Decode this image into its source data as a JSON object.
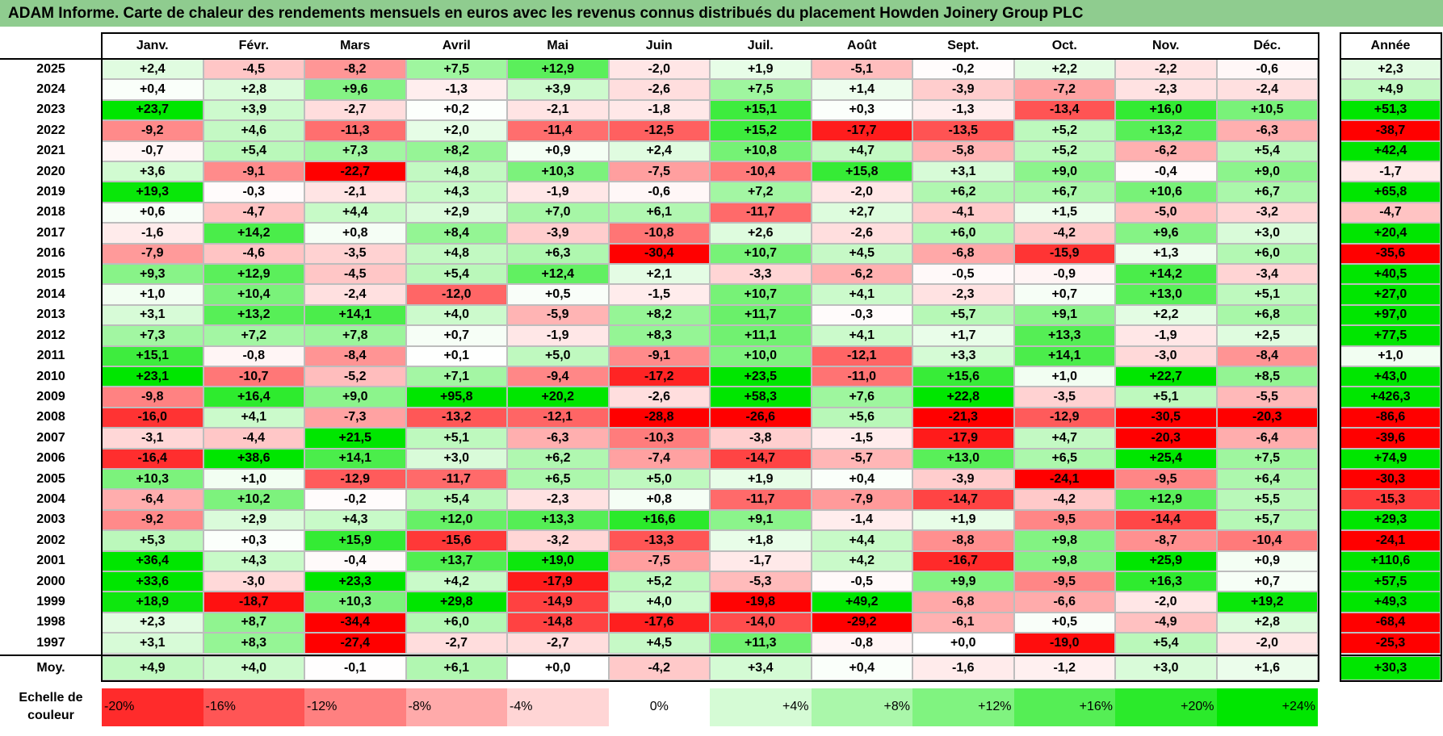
{
  "title": "ADAM Informe. Carte de chaleur des rendements mensuels en euros avec les revenus connus distribués du placement Howden Joinery Group PLC",
  "chart_data": {
    "type": "heatmap",
    "columns": [
      "Janv.",
      "Févr.",
      "Mars",
      "Avril",
      "Mai",
      "Juin",
      "Juil.",
      "Août",
      "Sept.",
      "Oct.",
      "Nov.",
      "Déc."
    ],
    "year_column": "Année",
    "rows": [
      {
        "year": "2025",
        "values": [
          "+2,4",
          "-4,5",
          "-8,2",
          "+7,5",
          "+12,9",
          "-2,0",
          "+1,9",
          "-5,1",
          "-0,2",
          "+2,2",
          "-2,2",
          "-0,6"
        ],
        "annual": "+2,3"
      },
      {
        "year": "2024",
        "values": [
          "+0,4",
          "+2,8",
          "+9,6",
          "-1,3",
          "+3,9",
          "-2,6",
          "+7,5",
          "+1,4",
          "-3,9",
          "-7,2",
          "-2,3",
          "-2,4"
        ],
        "annual": "+4,9"
      },
      {
        "year": "2023",
        "values": [
          "+23,7",
          "+3,9",
          "-2,7",
          "+0,2",
          "-2,1",
          "-1,8",
          "+15,1",
          "+0,3",
          "-1,3",
          "-13,4",
          "+16,0",
          "+10,5"
        ],
        "annual": "+51,3"
      },
      {
        "year": "2022",
        "values": [
          "-9,2",
          "+4,6",
          "-11,3",
          "+2,0",
          "-11,4",
          "-12,5",
          "+15,2",
          "-17,7",
          "-13,5",
          "+5,2",
          "+13,2",
          "-6,3"
        ],
        "annual": "-38,7"
      },
      {
        "year": "2021",
        "values": [
          "-0,7",
          "+5,4",
          "+7,3",
          "+8,2",
          "+0,9",
          "+2,4",
          "+10,8",
          "+4,7",
          "-5,8",
          "+5,2",
          "-6,2",
          "+5,4"
        ],
        "annual": "+42,4"
      },
      {
        "year": "2020",
        "values": [
          "+3,6",
          "-9,1",
          "-22,7",
          "+4,8",
          "+10,3",
          "-7,5",
          "-10,4",
          "+15,8",
          "+3,1",
          "+9,0",
          "-0,4",
          "+9,0"
        ],
        "annual": "-1,7"
      },
      {
        "year": "2019",
        "values": [
          "+19,3",
          "-0,3",
          "-2,1",
          "+4,3",
          "-1,9",
          "-0,6",
          "+7,2",
          "-2,0",
          "+6,2",
          "+6,7",
          "+10,6",
          "+6,7"
        ],
        "annual": "+65,8"
      },
      {
        "year": "2018",
        "values": [
          "+0,6",
          "-4,7",
          "+4,4",
          "+2,9",
          "+7,0",
          "+6,1",
          "-11,7",
          "+2,7",
          "-4,1",
          "+1,5",
          "-5,0",
          "-3,2"
        ],
        "annual": "-4,7"
      },
      {
        "year": "2017",
        "values": [
          "-1,6",
          "+14,2",
          "+0,8",
          "+8,4",
          "-3,9",
          "-10,8",
          "+2,6",
          "-2,6",
          "+6,0",
          "-4,2",
          "+9,6",
          "+3,0"
        ],
        "annual": "+20,4"
      },
      {
        "year": "2016",
        "values": [
          "-7,9",
          "-4,6",
          "-3,5",
          "+4,8",
          "+6,3",
          "-30,4",
          "+10,7",
          "+4,5",
          "-6,8",
          "-15,9",
          "+1,3",
          "+6,0"
        ],
        "annual": "-35,6"
      },
      {
        "year": "2015",
        "values": [
          "+9,3",
          "+12,9",
          "-4,5",
          "+5,4",
          "+12,4",
          "+2,1",
          "-3,3",
          "-6,2",
          "-0,5",
          "-0,9",
          "+14,2",
          "-3,4"
        ],
        "annual": "+40,5"
      },
      {
        "year": "2014",
        "values": [
          "+1,0",
          "+10,4",
          "-2,4",
          "-12,0",
          "+0,5",
          "-1,5",
          "+10,7",
          "+4,1",
          "-2,3",
          "+0,7",
          "+13,0",
          "+5,1"
        ],
        "annual": "+27,0"
      },
      {
        "year": "2013",
        "values": [
          "+3,1",
          "+13,2",
          "+14,1",
          "+4,0",
          "-5,9",
          "+8,2",
          "+11,7",
          "-0,3",
          "+5,7",
          "+9,1",
          "+2,2",
          "+6,8"
        ],
        "annual": "+97,0"
      },
      {
        "year": "2012",
        "values": [
          "+7,3",
          "+7,2",
          "+7,8",
          "+0,7",
          "-1,9",
          "+8,3",
          "+11,1",
          "+4,1",
          "+1,7",
          "+13,3",
          "-1,9",
          "+2,5"
        ],
        "annual": "+77,5"
      },
      {
        "year": "2011",
        "values": [
          "+15,1",
          "-0,8",
          "-8,4",
          "+0,1",
          "+5,0",
          "-9,1",
          "+10,0",
          "-12,1",
          "+3,3",
          "+14,1",
          "-3,0",
          "-8,4"
        ],
        "annual": "+1,0"
      },
      {
        "year": "2010",
        "values": [
          "+23,1",
          "-10,7",
          "-5,2",
          "+7,1",
          "-9,4",
          "-17,2",
          "+23,5",
          "-11,0",
          "+15,6",
          "+1,0",
          "+22,7",
          "+8,5"
        ],
        "annual": "+43,0"
      },
      {
        "year": "2009",
        "values": [
          "-9,8",
          "+16,4",
          "+9,0",
          "+95,8",
          "+20,2",
          "-2,6",
          "+58,3",
          "+7,6",
          "+22,8",
          "-3,5",
          "+5,1",
          "-5,5"
        ],
        "annual": "+426,3"
      },
      {
        "year": "2008",
        "values": [
          "-16,0",
          "+4,1",
          "-7,3",
          "-13,2",
          "-12,1",
          "-28,8",
          "-26,6",
          "+5,6",
          "-21,3",
          "-12,9",
          "-30,5",
          "-20,3"
        ],
        "annual": "-86,6"
      },
      {
        "year": "2007",
        "values": [
          "-3,1",
          "-4,4",
          "+21,5",
          "+5,1",
          "-6,3",
          "-10,3",
          "-3,8",
          "-1,5",
          "-17,9",
          "+4,7",
          "-20,3",
          "-6,4"
        ],
        "annual": "-39,6"
      },
      {
        "year": "2006",
        "values": [
          "-16,4",
          "+38,6",
          "+14,1",
          "+3,0",
          "+6,2",
          "-7,4",
          "-14,7",
          "-5,7",
          "+13,0",
          "+6,5",
          "+25,4",
          "+7,5"
        ],
        "annual": "+74,9"
      },
      {
        "year": "2005",
        "values": [
          "+10,3",
          "+1,0",
          "-12,9",
          "-11,7",
          "+6,5",
          "+5,0",
          "+1,9",
          "+0,4",
          "-3,9",
          "-24,1",
          "-9,5",
          "+6,4"
        ],
        "annual": "-30,3"
      },
      {
        "year": "2004",
        "values": [
          "-6,4",
          "+10,2",
          "-0,2",
          "+5,4",
          "-2,3",
          "+0,8",
          "-11,7",
          "-7,9",
          "-14,7",
          "-4,2",
          "+12,9",
          "+5,5"
        ],
        "annual": "-15,3"
      },
      {
        "year": "2003",
        "values": [
          "-9,2",
          "+2,9",
          "+4,3",
          "+12,0",
          "+13,3",
          "+16,6",
          "+9,1",
          "-1,4",
          "+1,9",
          "-9,5",
          "-14,4",
          "+5,7"
        ],
        "annual": "+29,3"
      },
      {
        "year": "2002",
        "values": [
          "+5,3",
          "+0,3",
          "+15,9",
          "-15,6",
          "-3,2",
          "-13,3",
          "+1,8",
          "+4,4",
          "-8,8",
          "+9,8",
          "-8,7",
          "-10,4"
        ],
        "annual": "-24,1"
      },
      {
        "year": "2001",
        "values": [
          "+36,4",
          "+4,3",
          "-0,4",
          "+13,7",
          "+19,0",
          "-7,5",
          "-1,7",
          "+4,2",
          "-16,7",
          "+9,8",
          "+25,9",
          "+0,9"
        ],
        "annual": "+110,6"
      },
      {
        "year": "2000",
        "values": [
          "+33,6",
          "-3,0",
          "+23,3",
          "+4,2",
          "-17,9",
          "+5,2",
          "-5,3",
          "-0,5",
          "+9,9",
          "-9,5",
          "+16,3",
          "+0,7"
        ],
        "annual": "+57,5"
      },
      {
        "year": "1999",
        "values": [
          "+18,9",
          "-18,7",
          "+10,3",
          "+29,8",
          "-14,9",
          "+4,0",
          "-19,8",
          "+49,2",
          "-6,8",
          "-6,6",
          "-2,0",
          "+19,2"
        ],
        "annual": "+49,3"
      },
      {
        "year": "1998",
        "values": [
          "+2,3",
          "+8,7",
          "-34,4",
          "+6,0",
          "-14,8",
          "-17,6",
          "-14,0",
          "-29,2",
          "-6,1",
          "+0,5",
          "-4,9",
          "+2,8"
        ],
        "annual": "-68,4"
      },
      {
        "year": "1997",
        "values": [
          "+3,1",
          "+8,3",
          "-27,4",
          "-2,7",
          "-2,7",
          "+4,5",
          "+11,3",
          "-0,8",
          "+0,0",
          "-19,0",
          "+5,4",
          "-2,0"
        ],
        "annual": "-25,3"
      }
    ],
    "average": {
      "label": "Moy.",
      "values": [
        "+4,9",
        "+4,0",
        "-0,1",
        "+6,1",
        "+0,0",
        "-4,2",
        "+3,4",
        "+0,4",
        "-1,6",
        "-1,2",
        "+3,0",
        "+1,6"
      ],
      "annual": "+30,3"
    },
    "legend": {
      "label": "Echelle de couleur",
      "steps": [
        {
          "text": "-20%",
          "value": -20
        },
        {
          "text": "-16%",
          "value": -16
        },
        {
          "text": "-12%",
          "value": -12
        },
        {
          "text": "-8%",
          "value": -8
        },
        {
          "text": "-4%",
          "value": -4
        },
        {
          "text": "0%",
          "value": 0
        },
        {
          "text": "+4%",
          "value": 4
        },
        {
          "text": "+8%",
          "value": 8
        },
        {
          "text": "+12%",
          "value": 12
        },
        {
          "text": "+16%",
          "value": 16
        },
        {
          "text": "+20%",
          "value": 20
        },
        {
          "text": "+24%",
          "value": 24
        }
      ]
    },
    "colors": {
      "negative_max": "#ff0000",
      "zero": "#ffffff",
      "positive_max": "#00e600"
    }
  }
}
